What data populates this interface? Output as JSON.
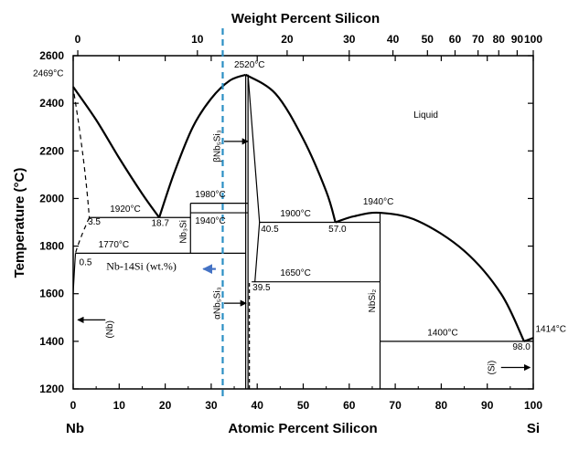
{
  "chart_data": {
    "type": "phase-diagram",
    "title": "Weight Percent Silicon",
    "xlabel": "Atomic Percent Silicon",
    "ylabel": "Temperature (°C)",
    "xlim": [
      0,
      100
    ],
    "ylim": [
      1200,
      2600
    ],
    "x_ticks": [
      0,
      10,
      20,
      30,
      40,
      50,
      60,
      70,
      80,
      90,
      100
    ],
    "y_ticks": [
      1200,
      1400,
      1600,
      1800,
      2000,
      2200,
      2400,
      2600
    ],
    "top_ticks": [
      {
        "label": "0",
        "at": 1.0
      },
      {
        "label": "10",
        "at": 27.0
      },
      {
        "label": "20",
        "at": 46.5
      },
      {
        "label": "30",
        "at": 60.0
      },
      {
        "label": "40",
        "at": 69.5
      },
      {
        "label": "50",
        "at": 77.0
      },
      {
        "label": "60",
        "at": 83.0
      },
      {
        "label": "70",
        "at": 88.0
      },
      {
        "label": "80",
        "at": 92.5
      },
      {
        "label": "90",
        "at": 96.5
      },
      {
        "label": "100",
        "at": 100.0
      }
    ],
    "end_labels": {
      "left": "Nb",
      "right": "Si"
    },
    "liquidus": [
      {
        "name": "Nb liquidus",
        "points": [
          [
            0,
            2469
          ],
          [
            5,
            2330
          ],
          [
            10,
            2170
          ],
          [
            15,
            2020
          ],
          [
            18.7,
            1920
          ]
        ]
      },
      {
        "name": "Nb3Si / Nb5Si3 liquidus",
        "points": [
          [
            18.7,
            1920
          ],
          [
            22,
            2110
          ],
          [
            26,
            2300
          ],
          [
            30,
            2420
          ],
          [
            34,
            2495
          ],
          [
            37.5,
            2520
          ]
        ]
      },
      {
        "name": "Nb5Si3 liquidus (Si side)",
        "points": [
          [
            37.5,
            2520
          ],
          [
            44,
            2440
          ],
          [
            50,
            2250
          ],
          [
            55,
            2030
          ],
          [
            57.0,
            1900
          ]
        ]
      },
      {
        "name": "NbSi2 liquidus",
        "points": [
          [
            57.0,
            1900
          ],
          [
            61,
            1925
          ],
          [
            66.7,
            1940
          ],
          [
            75,
            1905
          ],
          [
            85,
            1780
          ],
          [
            93,
            1600
          ],
          [
            98.0,
            1400
          ]
        ]
      },
      {
        "name": "Si liquidus",
        "points": [
          [
            98.0,
            1400
          ],
          [
            100,
            1414
          ]
        ]
      }
    ],
    "isotherms": [
      {
        "temp": 1920,
        "from": 3.5,
        "to": 25.5
      },
      {
        "temp": 1980,
        "from": 25.5,
        "to": 38.0
      },
      {
        "temp": 1940,
        "from": 25.5,
        "to": 38.0
      },
      {
        "temp": 1770,
        "from": 0.5,
        "to": 37.5
      },
      {
        "temp": 1900,
        "from": 40.5,
        "to": 66.7
      },
      {
        "temp": 1650,
        "from": 39.5,
        "to": 66.7
      },
      {
        "temp": 1400,
        "from": 66.7,
        "to": 100
      }
    ],
    "labels": {
      "t_2469": "2469°C",
      "t_2520": "2520°C",
      "t_1920": "1920°C",
      "t_1980": "1980°C",
      "t_1940a": "1940°C",
      "t_1770": "1770°C",
      "t_1900": "1900°C",
      "t_1940b": "1940°C",
      "t_1650": "1650°C",
      "t_1400": "1400°C",
      "t_1414": "1414°C",
      "c_3_5": "3.5",
      "c_18_7": "18.7",
      "c_0_5": "0.5",
      "c_40_5": "40.5",
      "c_57_0": "57.0",
      "c_39_5": "39.5",
      "c_98_0": "98.0",
      "liquid": "Liquid",
      "nb3si": "Nb₃Si",
      "beta_nb5si3": "βNb₅Si₃",
      "alpha_nb5si3": "αNb₅Si₃",
      "nbsi2": "NbSi₂",
      "nb_phase": "(Nb)",
      "si_phase": "(Si)",
      "nb14si": "Nb-14Si (wt.%)"
    },
    "marker_line": {
      "x": 32.5,
      "color": "#2b8fc4",
      "label": "Nb-14Si (wt.%)"
    },
    "arrow_color": "#4472c4",
    "grid": false
  }
}
